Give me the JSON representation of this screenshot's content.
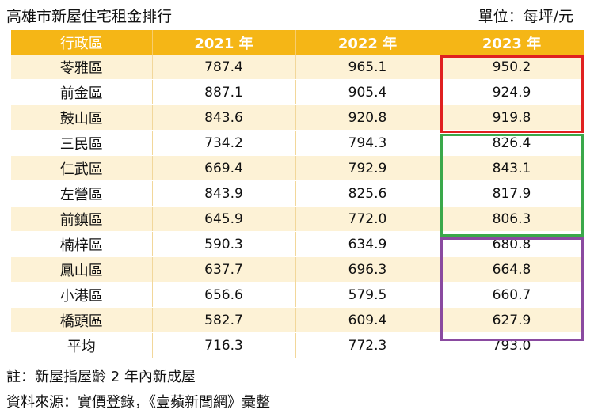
{
  "title": "高雄市新屋住宅租金排行",
  "unit": "單位：每坪/元",
  "table": {
    "headers": [
      "行政區",
      "2021 年",
      "2022 年",
      "2023 年"
    ],
    "rows": [
      [
        "苓雅區",
        "787.4",
        "965.1",
        "950.2"
      ],
      [
        "前金區",
        "887.1",
        "905.4",
        "924.9"
      ],
      [
        "鼓山區",
        "843.6",
        "920.8",
        "919.8"
      ],
      [
        "三民區",
        "734.2",
        "794.3",
        "826.4"
      ],
      [
        "仁武區",
        "669.4",
        "792.9",
        "843.1"
      ],
      [
        "左營區",
        "843.9",
        "825.6",
        "817.9"
      ],
      [
        "前鎮區",
        "645.9",
        "772.0",
        "806.3"
      ],
      [
        "楠梓區",
        "590.3",
        "634.9",
        "680.8"
      ],
      [
        "鳳山區",
        "637.7",
        "696.3",
        "664.8"
      ],
      [
        "小港區",
        "656.6",
        "579.5",
        "660.7"
      ],
      [
        "橋頭區",
        "582.7",
        "609.4",
        "627.9"
      ],
      [
        "平均",
        "716.3",
        "772.3",
        "793.0"
      ]
    ]
  },
  "highlight_colors": {
    "top_group": "#e02020",
    "middle_group": "#3aa84a",
    "bottom_group": "#8a4aa0"
  },
  "note": "註：新屋指屋齡 2 年內新成屋",
  "source": "資料來源：實價登錄，《壹蘋新聞網》彙整"
}
